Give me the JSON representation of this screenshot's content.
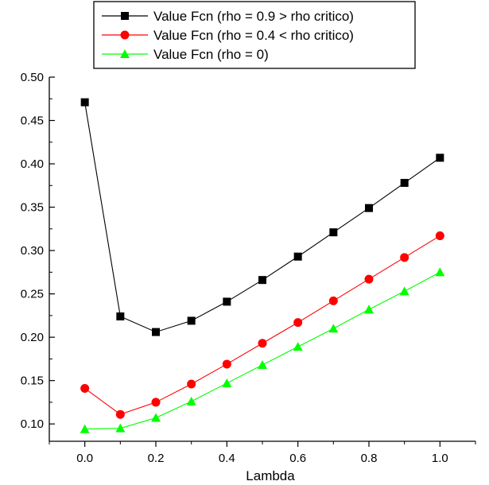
{
  "chart_data": {
    "type": "line",
    "xlabel": "Lambda",
    "ylabel": "",
    "xlim": [
      -0.1,
      1.1
    ],
    "ylim": [
      0.08,
      0.5
    ],
    "x": [
      0.0,
      0.1,
      0.2,
      0.3,
      0.4,
      0.5,
      0.6,
      0.7,
      0.8,
      0.9,
      1.0
    ],
    "x_ticks": [
      "0.0",
      "0.2",
      "0.4",
      "0.6",
      "0.8",
      "1.0"
    ],
    "y_ticks": [
      "0.10",
      "0.15",
      "0.20",
      "0.25",
      "0.30",
      "0.35",
      "0.40",
      "0.45",
      "0.50"
    ],
    "legend_position": "top-center",
    "grid": false,
    "series": [
      {
        "name": "Value Fcn (rho = 0.9 > rho critico)",
        "color": "#000000",
        "marker": "square",
        "values": [
          0.471,
          0.224,
          0.206,
          0.219,
          0.241,
          0.266,
          0.293,
          0.321,
          0.349,
          0.378,
          0.407
        ]
      },
      {
        "name": "Value Fcn (rho = 0.4 < rho critico)",
        "color": "#ff0000",
        "marker": "circle",
        "values": [
          0.141,
          0.111,
          0.125,
          0.146,
          0.169,
          0.193,
          0.217,
          0.242,
          0.267,
          0.292,
          0.317
        ]
      },
      {
        "name": "Value Fcn (rho = 0)",
        "color": "#00ff00",
        "marker": "triangle",
        "values": [
          0.094,
          0.095,
          0.107,
          0.126,
          0.147,
          0.168,
          0.189,
          0.21,
          0.232,
          0.253,
          0.275
        ]
      }
    ]
  }
}
